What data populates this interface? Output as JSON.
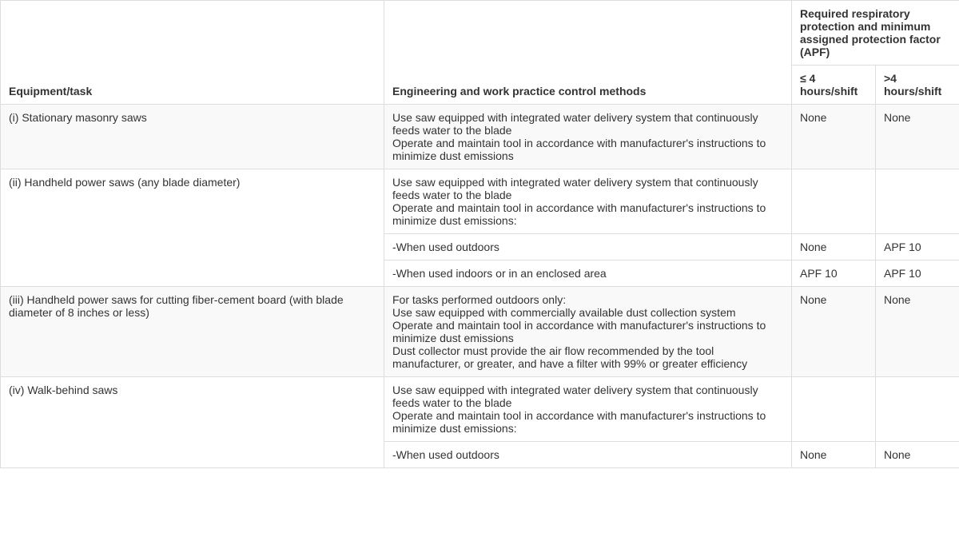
{
  "columns": {
    "equipment": "Equipment/task",
    "methods": "Engineering and work practice control methods",
    "apf_group": "Required respiratory protection and minimum assigned protection factor (APF)",
    "apf_le4": "≤ 4 hours/shift",
    "apf_gt4": ">4 hours/shift"
  },
  "rows": [
    {
      "shaded": true,
      "equipment": "(i) Stationary masonry saws",
      "methods": [
        "Use saw equipped with integrated water delivery system that continuously feeds water to the blade",
        "Operate and maintain tool in accordance with manufacturer's instructions to minimize dust emissions"
      ],
      "apf_le4": "None",
      "apf_gt4": "None",
      "rowspan_equip": 1
    },
    {
      "shaded": false,
      "equipment": "(ii) Handheld power saws (any blade diameter)",
      "methods": [
        "Use saw equipped with integrated water delivery system that continuously feeds water to the blade",
        "Operate and maintain tool in accordance with manufacturer's instructions to minimize dust emissions:"
      ],
      "apf_le4": "",
      "apf_gt4": "",
      "rowspan_equip": 3
    },
    {
      "shaded": false,
      "methods": [
        "-When used outdoors"
      ],
      "apf_le4": "None",
      "apf_gt4": "APF 10"
    },
    {
      "shaded": false,
      "methods": [
        "-When used indoors or in an enclosed area"
      ],
      "apf_le4": "APF 10",
      "apf_gt4": "APF 10"
    },
    {
      "shaded": true,
      "equipment": "(iii) Handheld power saws for cutting fiber-cement board (with blade diameter of 8 inches or less)",
      "methods": [
        "For tasks performed outdoors only:",
        "Use saw equipped with commercially available dust collection system",
        "Operate and maintain tool in accordance with manufacturer's instructions to minimize dust emissions",
        "Dust collector must provide the air flow recommended by the tool manufacturer, or greater, and have a filter with 99% or greater efficiency"
      ],
      "apf_le4": "None",
      "apf_gt4": "None",
      "rowspan_equip": 1
    },
    {
      "shaded": false,
      "equipment": "(iv) Walk-behind saws",
      "methods": [
        "Use saw equipped with integrated water delivery system that continuously feeds water to the blade",
        "Operate and maintain tool in accordance with manufacturer's instructions to minimize dust emissions:"
      ],
      "apf_le4": "",
      "apf_gt4": "",
      "rowspan_equip": 2
    },
    {
      "shaded": false,
      "methods": [
        "-When used outdoors"
      ],
      "apf_le4": "None",
      "apf_gt4": "None"
    }
  ]
}
